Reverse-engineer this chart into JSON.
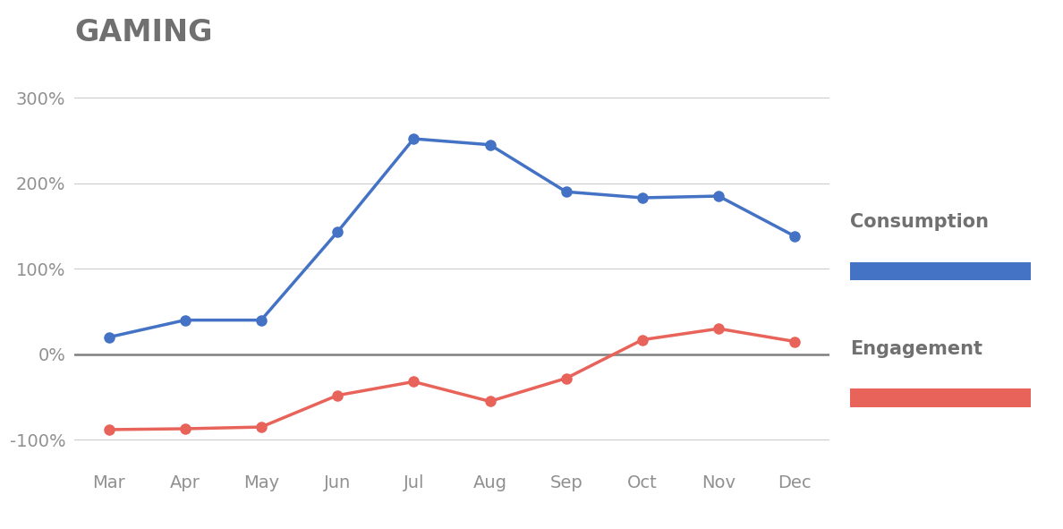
{
  "title": "GAMING",
  "months": [
    "Mar",
    "Apr",
    "May",
    "Jun",
    "Jul",
    "Aug",
    "Sep",
    "Oct",
    "Nov",
    "Dec"
  ],
  "consumption": [
    20,
    40,
    40,
    143,
    252,
    245,
    190,
    183,
    185,
    138
  ],
  "engagement": [
    -88,
    -87,
    -85,
    -48,
    -32,
    -55,
    -28,
    17,
    30,
    15
  ],
  "consumption_color": "#4472C4",
  "engagement_color": "#E8635A",
  "zero_line_color": "#808080",
  "grid_color": "#CCCCCC",
  "title_color": "#707070",
  "tick_color": "#909090",
  "legend_label_color": "#707070",
  "background_color": "#FFFFFF",
  "ylim": [
    -130,
    340
  ],
  "yticks": [
    -100,
    0,
    100,
    200,
    300
  ],
  "title_fontsize": 24,
  "axis_fontsize": 14,
  "legend_fontsize": 15,
  "line_width": 2.5,
  "marker_size": 8
}
